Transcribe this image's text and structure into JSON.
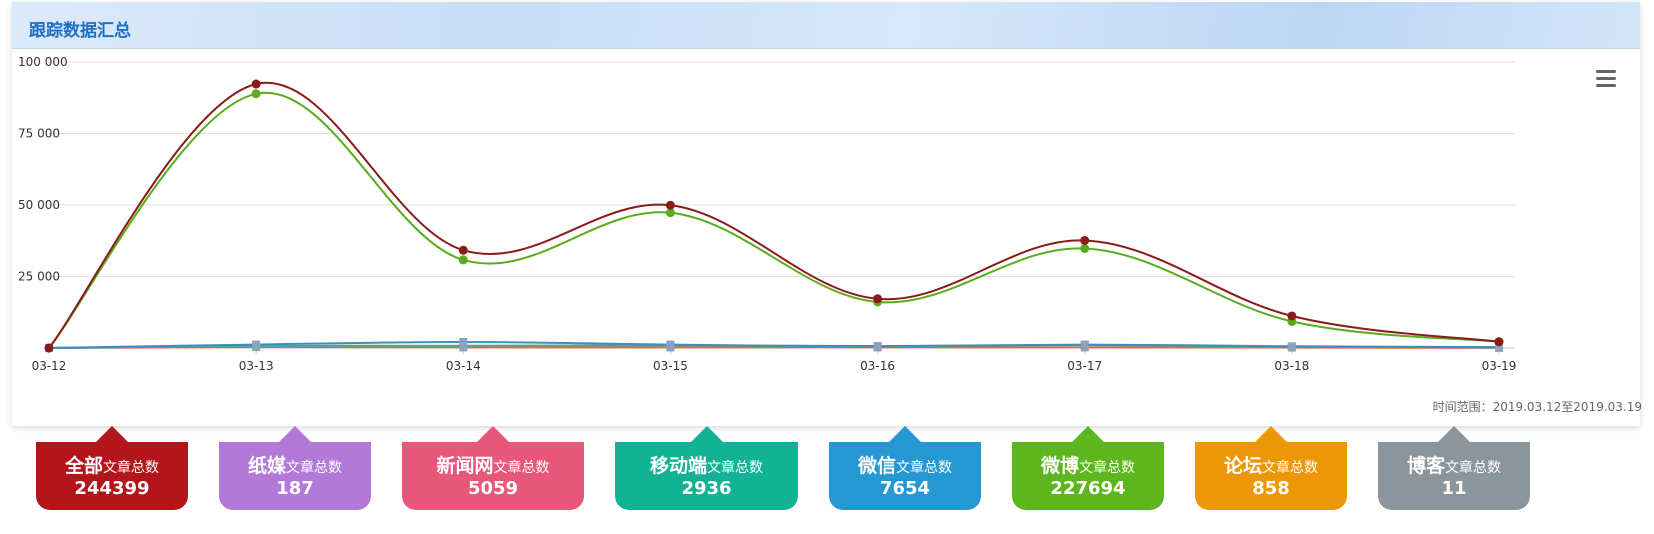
{
  "panel": {
    "title": "跟踪数据汇总",
    "time_range": "时间范围：2019.03.12至2019.03.19"
  },
  "colors": {
    "total": "#8b1a1a",
    "weibo": "#5aac1c",
    "web": "#3b8ec4",
    "mobile": "#4aa6a0"
  },
  "chart_data": {
    "type": "line",
    "x": [
      "03-12",
      "03-13",
      "03-14",
      "03-15",
      "03-16",
      "03-17",
      "03-18",
      "03-19"
    ],
    "ylim": [
      0,
      100000
    ],
    "yticks": [
      0,
      25000,
      50000,
      75000,
      100000
    ],
    "ytick_labels": [
      "",
      "25 000",
      "50 000",
      "75 000",
      "100 000"
    ],
    "series": [
      {
        "values": [
          0,
          92300,
          34200,
          49900,
          17200,
          37600,
          11200,
          2200
        ],
        "color": "#8b1a1a",
        "marker": "circle"
      },
      {
        "values": [
          0,
          88900,
          30800,
          47300,
          16100,
          34800,
          9300,
          2200
        ],
        "color": "#5aac1c",
        "marker": "circle"
      },
      {
        "values": [
          0,
          1200,
          2100,
          1200,
          600,
          1200,
          600,
          300
        ],
        "color": "#3b8ec4",
        "marker": "square"
      },
      {
        "values": [
          0,
          700,
          800,
          900,
          700,
          1000,
          500,
          200
        ],
        "color": "#4aa6a0",
        "marker": "square"
      },
      {
        "values": [
          0,
          300,
          200,
          200,
          200,
          200,
          150,
          50
        ],
        "color": "#e06a3c",
        "marker": "square"
      }
    ]
  },
  "cards": [
    {
      "name": "全部",
      "suffix": "文章总数",
      "count": "244399",
      "color": "#b3161a"
    },
    {
      "name": "纸媒",
      "suffix": "文章总数",
      "count": "187",
      "color": "#b279d8"
    },
    {
      "name": "新闻网",
      "suffix": "文章总数",
      "count": "5059",
      "color": "#e8577a"
    },
    {
      "name": "移动端",
      "suffix": "文章总数",
      "count": "2936",
      "color": "#12b394"
    },
    {
      "name": "微信",
      "suffix": "文章总数",
      "count": "7654",
      "color": "#2598d4"
    },
    {
      "name": "微博",
      "suffix": "文章总数",
      "count": "227694",
      "color": "#5db61d"
    },
    {
      "name": "论坛",
      "suffix": "文章总数",
      "count": "858",
      "color": "#ee9706"
    },
    {
      "name": "博客",
      "suffix": "文章总数",
      "count": "11",
      "color": "#8c959c"
    }
  ]
}
